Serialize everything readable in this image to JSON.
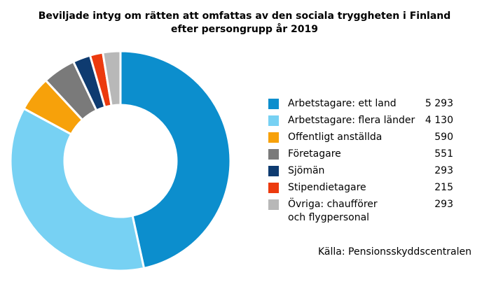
{
  "chart_data": {
    "type": "pie",
    "donut": true,
    "title": [
      "Beviljade intyg om rätten att omfattas av den sociala tryggheten i Finland",
      "efter persongrupp år 2019"
    ],
    "legend_position": "right",
    "slices": [
      {
        "label": [
          "Arbetstagare: ett land"
        ],
        "value": 5293,
        "value_text": "5 293",
        "color": "#0c8ecd"
      },
      {
        "label": [
          "Arbetstagare: flera länder"
        ],
        "value": 4130,
        "value_text": "4 130",
        "color": "#77d1f3"
      },
      {
        "label": [
          "Offentligt anställda"
        ],
        "value": 590,
        "value_text": "590",
        "color": "#f7a10a"
      },
      {
        "label": [
          "Företagare"
        ],
        "value": 551,
        "value_text": "551",
        "color": "#7a7a7a"
      },
      {
        "label": [
          "Sjömän"
        ],
        "value": 293,
        "value_text": "293",
        "color": "#0e3b70"
      },
      {
        "label": [
          "Stipendietagare"
        ],
        "value": 215,
        "value_text": "215",
        "color": "#ec3a0e"
      },
      {
        "label": [
          "Övriga: chaufförer",
          "och flygpersonal"
        ],
        "value": 293,
        "value_text": "293",
        "color": "#b8b8b8"
      }
    ],
    "source": "Källa: Pensionsskyddscentralen"
  }
}
